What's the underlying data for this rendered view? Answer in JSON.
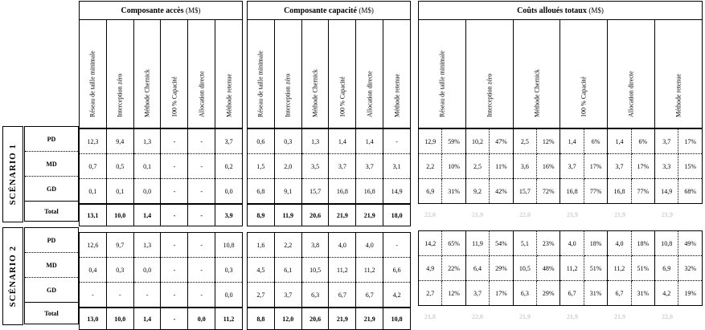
{
  "groups": {
    "acces": {
      "title": "Composante accès",
      "unit": "(M$)"
    },
    "capacite": {
      "title": "Composante capacité",
      "unit": "(M$)"
    },
    "couts": {
      "title": "Coûts alloués totaux",
      "unit": "(M$)"
    }
  },
  "methods": {
    "acces": [
      "Réseau de taille minimale",
      "Interception zéro",
      "Méthode Chernick",
      "100 % Capacité",
      "Allocation directe",
      "Méthode retenue"
    ],
    "capacite": [
      "Réseau de taille minimale",
      "Interception zéro",
      "Méthode Chernick",
      "100 % Capacité",
      "Allocation directe",
      "Méthode retenue"
    ],
    "couts": [
      "Réseau de taille minimale",
      "Interception zéro",
      "Méthode Chernick",
      "100 % Capacité",
      "Allocation directe",
      "Méthode retenue"
    ]
  },
  "scenario1": {
    "label": "SCÉNARIO 1",
    "rows": [
      {
        "label": "PD",
        "acces": [
          "12,3",
          "9,4",
          "1,3",
          "-",
          "-",
          "3,7"
        ],
        "capacite": [
          "0,6",
          "0,3",
          "1,3",
          "1,4",
          "1,4",
          "-"
        ],
        "couts": [
          "12,9",
          "59%",
          "10,2",
          "47%",
          "2,5",
          "12%",
          "1,4",
          "6%",
          "1,4",
          "6%",
          "3,7",
          "17%"
        ]
      },
      {
        "label": "MD",
        "acces": [
          "0,7",
          "0,5",
          "0,1",
          "-",
          "-",
          "0,2"
        ],
        "capacite": [
          "1,5",
          "2,0",
          "3,5",
          "3,7",
          "3,7",
          "3,1"
        ],
        "couts": [
          "2,2",
          "10%",
          "2,5",
          "11%",
          "3,6",
          "16%",
          "3,7",
          "17%",
          "3,7",
          "17%",
          "3,3",
          "15%"
        ]
      },
      {
        "label": "GD",
        "acces": [
          "0,1",
          "0,1",
          "0,0",
          "-",
          "-",
          "0,0"
        ],
        "capacite": [
          "6,8",
          "9,1",
          "15,7",
          "16,8",
          "16,8",
          "14,9"
        ],
        "couts": [
          "6,9",
          "31%",
          "9,2",
          "42%",
          "15,7",
          "72%",
          "16,8",
          "77%",
          "16,8",
          "77%",
          "14,9",
          "68%"
        ]
      }
    ],
    "total": {
      "label": "Total",
      "acces": [
        "13,1",
        "10,0",
        "1,4",
        "-",
        "-",
        "3,9"
      ],
      "capacite": [
        "8,9",
        "11,9",
        "20,6",
        "21,9",
        "21,9",
        "18,0"
      ],
      "couts": [
        "22,0",
        "21,9",
        "22,0",
        "21,9",
        "21,9",
        "21,9"
      ]
    }
  },
  "scenario2": {
    "label": "SCÉNARIO 2",
    "rows": [
      {
        "label": "PD",
        "acces": [
          "12,6",
          "9,7",
          "1,3",
          "-",
          "-",
          "10,8"
        ],
        "capacite": [
          "1,6",
          "2,2",
          "3,8",
          "4,0",
          "4,0",
          "-"
        ],
        "couts": [
          "14,2",
          "65%",
          "11,9",
          "54%",
          "5,1",
          "23%",
          "4,0",
          "18%",
          "4,0",
          "18%",
          "10,8",
          "49%"
        ]
      },
      {
        "label": "MD",
        "acces": [
          "0,4",
          "0,3",
          "0,0",
          "-",
          "-",
          "0,3"
        ],
        "capacite": [
          "4,5",
          "6,1",
          "10,5",
          "11,2",
          "11,2",
          "6,6"
        ],
        "couts": [
          "4,9",
          "22%",
          "6,4",
          "29%",
          "10,5",
          "48%",
          "11,2",
          "51%",
          "11,2",
          "51%",
          "6,9",
          "32%"
        ]
      },
      {
        "label": "GD",
        "acces": [
          "-",
          "-",
          "-",
          "-",
          "-",
          "0,0"
        ],
        "capacite": [
          "2,7",
          "3,7",
          "6,3",
          "6,7",
          "6,7",
          "4,2"
        ],
        "couts": [
          "2,7",
          "12%",
          "3,7",
          "17%",
          "6,3",
          "29%",
          "6,7",
          "31%",
          "6,7",
          "31%",
          "4,2",
          "19%"
        ]
      }
    ],
    "total": {
      "label": "Total",
      "acces": [
        "13,0",
        "10,0",
        "1,4",
        "-",
        "0,0",
        "11,2"
      ],
      "capacite": [
        "8,8",
        "12,0",
        "20,6",
        "21,9",
        "21,9",
        "10,8"
      ],
      "couts": [
        "21,8",
        "22,0",
        "21,9",
        "21,9",
        "21,9",
        "22,0"
      ]
    }
  }
}
